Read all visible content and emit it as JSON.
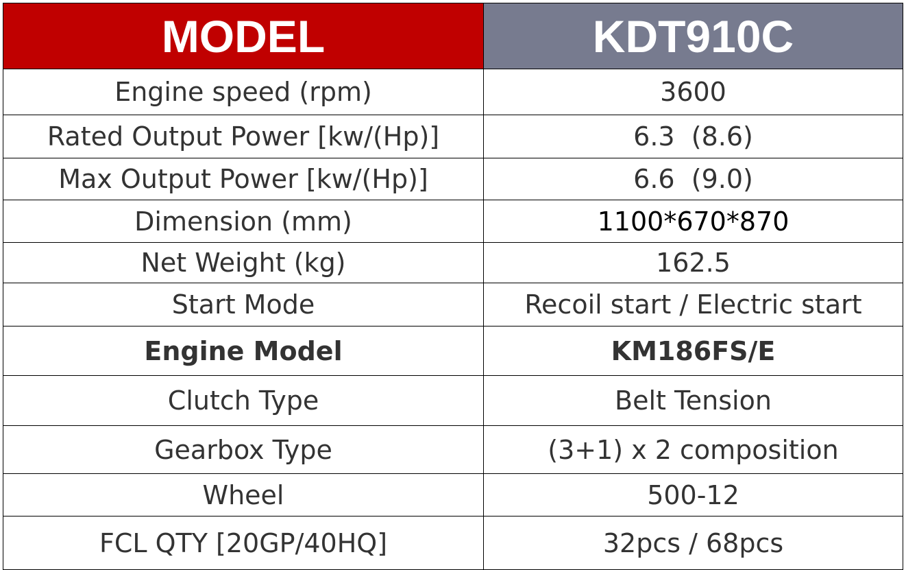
{
  "table": {
    "header": [
      "MODEL",
      "KDT910C"
    ],
    "rows": [
      [
        "Engine speed (rpm)",
        "3600"
      ],
      [
        "Rated Output Power [kw/(Hp)]",
        "6.3  (8.6)"
      ],
      [
        "Max Output Power [kw/(Hp)]",
        "6.6  (9.0)"
      ],
      [
        "Dimension (mm)",
        "1100*670*870"
      ],
      [
        "Net Weight (kg)",
        "162.5"
      ],
      [
        "Start Mode",
        "Recoil start / Electric start"
      ],
      [
        "Engine Model",
        "KM186FS/E"
      ],
      [
        "Clutch Type",
        "Belt Tension"
      ],
      [
        "Gearbox Type",
        "(3+1) x 2 composition"
      ],
      [
        "Wheel",
        "500-12"
      ],
      [
        "FCL QTY [20GP/40HQ]",
        "32pcs / 68pcs"
      ]
    ]
  }
}
